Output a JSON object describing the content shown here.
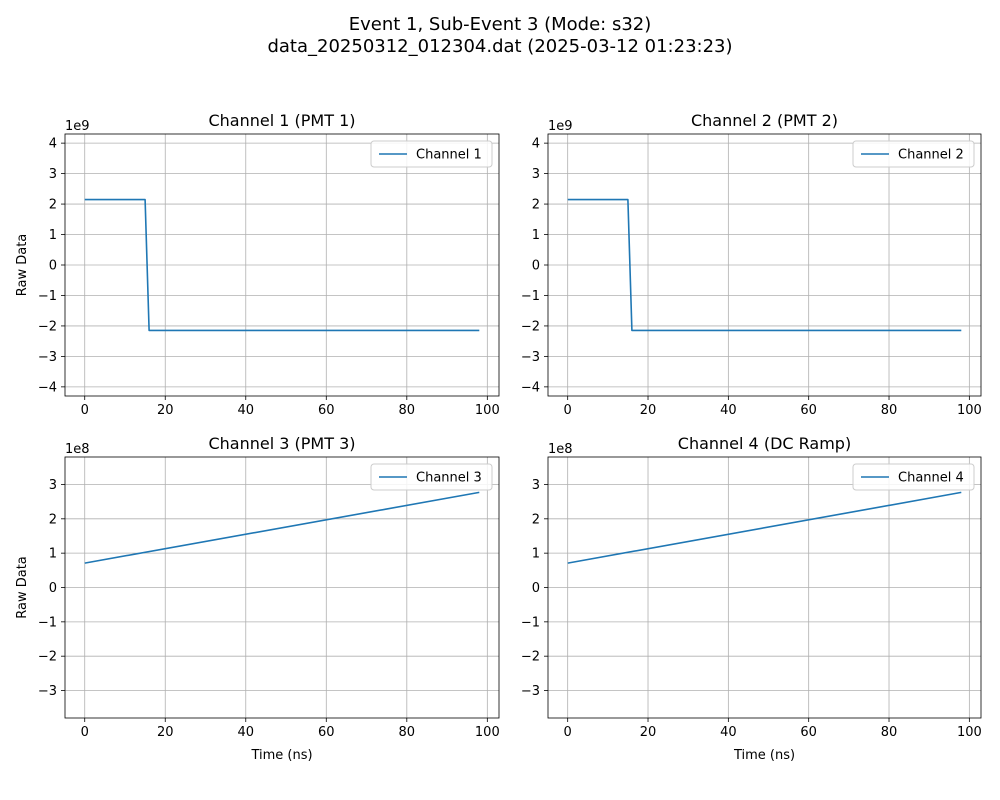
{
  "figure": {
    "title_line1": "Event 1, Sub-Event 3 (Mode: s32)",
    "title_line2": "data_20250312_012304.dat (2025-03-12 01:23:23)"
  },
  "colors": {
    "series": "#1f77b4",
    "grid": "#b0b0b0",
    "axis": "#000000"
  },
  "chart_data": [
    {
      "type": "line",
      "title": "Channel 1 (PMT 1)",
      "xlabel": "",
      "ylabel": "Raw Data",
      "xlim": [
        -4.9,
        102.9
      ],
      "ylim": [
        -4.3,
        4.3
      ],
      "scale_label": "1e9",
      "x_ticks": [
        0,
        20,
        40,
        60,
        80,
        100
      ],
      "y_ticks": [
        -4,
        -3,
        -2,
        -1,
        0,
        1,
        2,
        3,
        4
      ],
      "grid": true,
      "legend_position": "upper-right",
      "series": [
        {
          "name": "Channel 1",
          "x": [
            0,
            15,
            16,
            98
          ],
          "y": [
            2.147,
            2.147,
            -2.147,
            -2.147
          ]
        }
      ]
    },
    {
      "type": "line",
      "title": "Channel 2 (PMT 2)",
      "xlabel": "",
      "ylabel": "",
      "xlim": [
        -4.9,
        102.9
      ],
      "ylim": [
        -4.3,
        4.3
      ],
      "scale_label": "1e9",
      "x_ticks": [
        0,
        20,
        40,
        60,
        80,
        100
      ],
      "y_ticks": [
        -4,
        -3,
        -2,
        -1,
        0,
        1,
        2,
        3,
        4
      ],
      "grid": true,
      "legend_position": "upper-right",
      "series": [
        {
          "name": "Channel 2",
          "x": [
            0,
            15,
            16,
            98
          ],
          "y": [
            2.147,
            2.147,
            -2.147,
            -2.147
          ]
        }
      ]
    },
    {
      "type": "line",
      "title": "Channel 3 (PMT 3)",
      "xlabel": "Time (ns)",
      "ylabel": "Raw Data",
      "xlim": [
        -4.9,
        102.9
      ],
      "ylim": [
        -3.8,
        3.8
      ],
      "scale_label": "1e8",
      "x_ticks": [
        0,
        20,
        40,
        60,
        80,
        100
      ],
      "y_ticks": [
        -3,
        -2,
        -1,
        0,
        1,
        2,
        3
      ],
      "grid": true,
      "legend_position": "upper-right",
      "series": [
        {
          "name": "Channel 3",
          "x": [
            0,
            98
          ],
          "y": [
            0.71,
            2.77
          ]
        }
      ]
    },
    {
      "type": "line",
      "title": "Channel 4 (DC Ramp)",
      "xlabel": "Time (ns)",
      "ylabel": "",
      "xlim": [
        -4.9,
        102.9
      ],
      "ylim": [
        -3.8,
        3.8
      ],
      "scale_label": "1e8",
      "x_ticks": [
        0,
        20,
        40,
        60,
        80,
        100
      ],
      "y_ticks": [
        -3,
        -2,
        -1,
        0,
        1,
        2,
        3
      ],
      "grid": true,
      "legend_position": "upper-right",
      "series": [
        {
          "name": "Channel 4",
          "x": [
            0,
            98
          ],
          "y": [
            0.71,
            2.77
          ]
        }
      ]
    }
  ]
}
